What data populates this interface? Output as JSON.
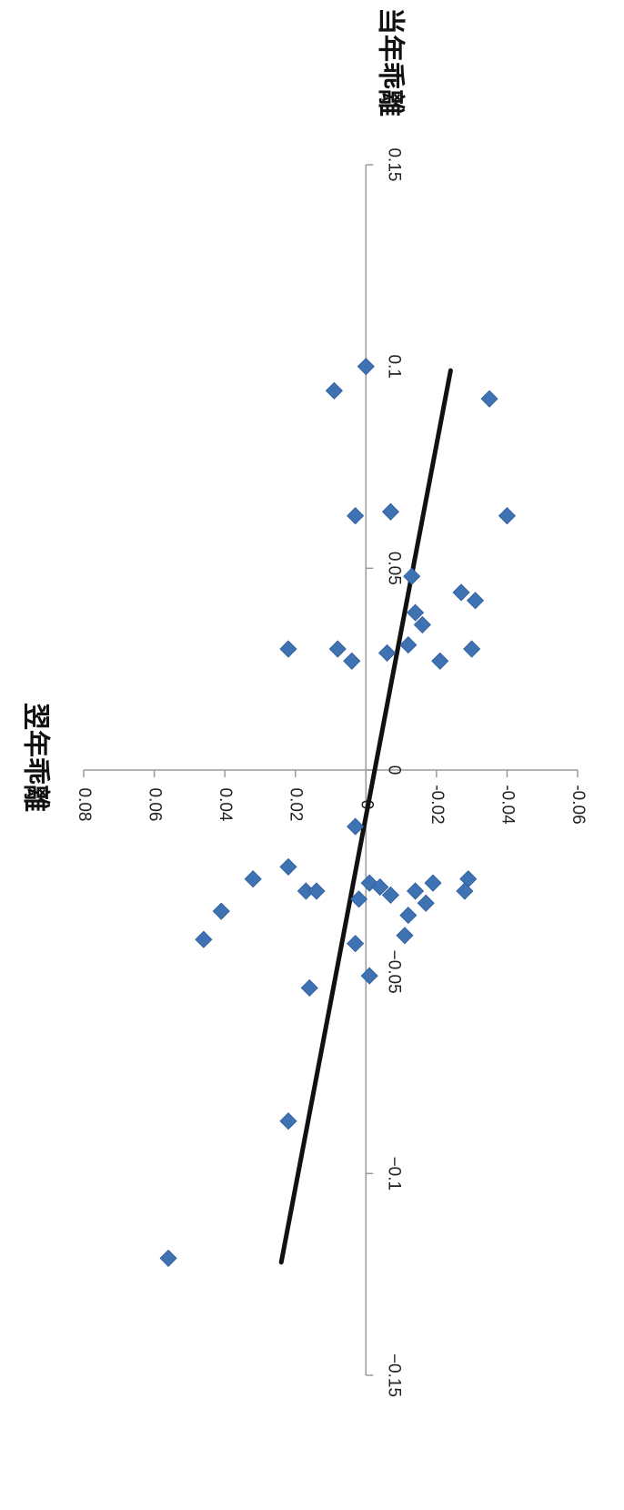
{
  "chart_data": {
    "type": "scatter",
    "orientation": "rotated-90-clockwise",
    "title": "",
    "xlabel": "当年乖離",
    "ylabel": "翌年乖離",
    "xlim": [
      -0.15,
      0.15
    ],
    "ylim": [
      -0.06,
      0.08
    ],
    "x_ticks": [
      "−0.15",
      "−0.1",
      "−0.05",
      "0",
      "0.05",
      "0.1",
      "0.15"
    ],
    "x_tick_values": [
      -0.15,
      -0.1,
      -0.05,
      0,
      0.05,
      0.1,
      0.15
    ],
    "y_ticks": [
      "0.08",
      "0.06",
      "0.04",
      "0.02",
      "0",
      "-0.02",
      "-0.04",
      "-0.06"
    ],
    "y_tick_values": [
      0.08,
      0.06,
      0.04,
      0.02,
      0,
      -0.02,
      -0.04,
      -0.06
    ],
    "grid": false,
    "legend": "none",
    "marker": "diamond",
    "marker_color": "#3e72b3",
    "trendline_color": "#111111",
    "points": [
      {
        "x": 0.1,
        "y": 0.0
      },
      {
        "x": 0.094,
        "y": 0.009
      },
      {
        "x": 0.092,
        "y": -0.035
      },
      {
        "x": 0.064,
        "y": -0.007
      },
      {
        "x": 0.063,
        "y": 0.003
      },
      {
        "x": 0.063,
        "y": -0.04
      },
      {
        "x": 0.048,
        "y": -0.013
      },
      {
        "x": 0.044,
        "y": -0.027
      },
      {
        "x": 0.042,
        "y": -0.031
      },
      {
        "x": 0.039,
        "y": -0.014
      },
      {
        "x": 0.036,
        "y": -0.016
      },
      {
        "x": 0.031,
        "y": -0.012
      },
      {
        "x": 0.03,
        "y": 0.022
      },
      {
        "x": 0.03,
        "y": 0.008
      },
      {
        "x": 0.03,
        "y": -0.03
      },
      {
        "x": 0.029,
        "y": -0.006
      },
      {
        "x": 0.027,
        "y": 0.004
      },
      {
        "x": 0.027,
        "y": -0.021
      },
      {
        "x": -0.014,
        "y": 0.003
      },
      {
        "x": -0.024,
        "y": 0.022
      },
      {
        "x": -0.027,
        "y": 0.032
      },
      {
        "x": -0.027,
        "y": -0.029
      },
      {
        "x": -0.028,
        "y": -0.019
      },
      {
        "x": -0.028,
        "y": -0.001
      },
      {
        "x": -0.029,
        "y": -0.004
      },
      {
        "x": -0.03,
        "y": 0.017
      },
      {
        "x": -0.03,
        "y": 0.014
      },
      {
        "x": -0.03,
        "y": -0.014
      },
      {
        "x": -0.03,
        "y": -0.028
      },
      {
        "x": -0.031,
        "y": -0.007
      },
      {
        "x": -0.032,
        "y": 0.002
      },
      {
        "x": -0.033,
        "y": -0.017
      },
      {
        "x": -0.035,
        "y": 0.041
      },
      {
        "x": -0.036,
        "y": -0.012
      },
      {
        "x": -0.041,
        "y": -0.011
      },
      {
        "x": -0.042,
        "y": 0.046
      },
      {
        "x": -0.043,
        "y": 0.003
      },
      {
        "x": -0.051,
        "y": -0.001
      },
      {
        "x": -0.054,
        "y": 0.016
      },
      {
        "x": -0.087,
        "y": 0.022
      },
      {
        "x": -0.121,
        "y": 0.056
      }
    ],
    "trendline": {
      "x": [
        -0.122,
        0.099
      ],
      "y": [
        0.024,
        -0.024
      ]
    }
  }
}
